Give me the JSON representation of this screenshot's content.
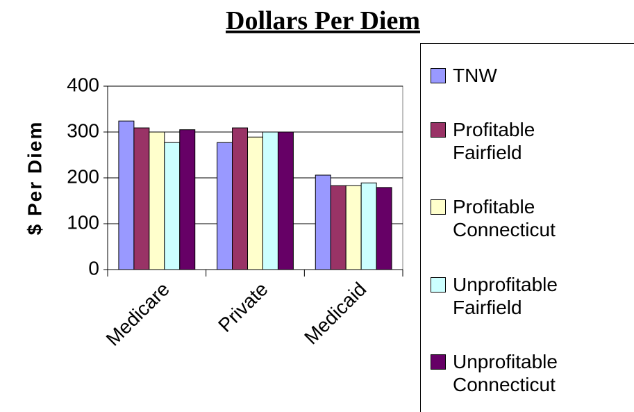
{
  "chart_data": {
    "type": "bar",
    "title": "Dollars Per Diem",
    "y_label": "$ Per Diem",
    "categories": [
      "Medicare",
      "Private",
      "Medicaid"
    ],
    "series": [
      {
        "name": "TNW",
        "color": "#9999ff",
        "values": [
          324,
          277,
          206
        ]
      },
      {
        "name": "Profitable Fairfield",
        "color": "#993366",
        "values": [
          309,
          309,
          183
        ]
      },
      {
        "name": "Profitable Connecticut",
        "color": "#ffffcc",
        "values": [
          300,
          289,
          183
        ]
      },
      {
        "name": "Unprofitable Fairfield",
        "color": "#ccffff",
        "values": [
          277,
          300,
          189
        ]
      },
      {
        "name": "Unprofitable Connecticut",
        "color": "#660066",
        "values": [
          305,
          300,
          179
        ]
      }
    ],
    "ylim": [
      0,
      400
    ],
    "yticks": [
      0,
      100,
      200,
      300,
      400
    ],
    "grid": true
  }
}
